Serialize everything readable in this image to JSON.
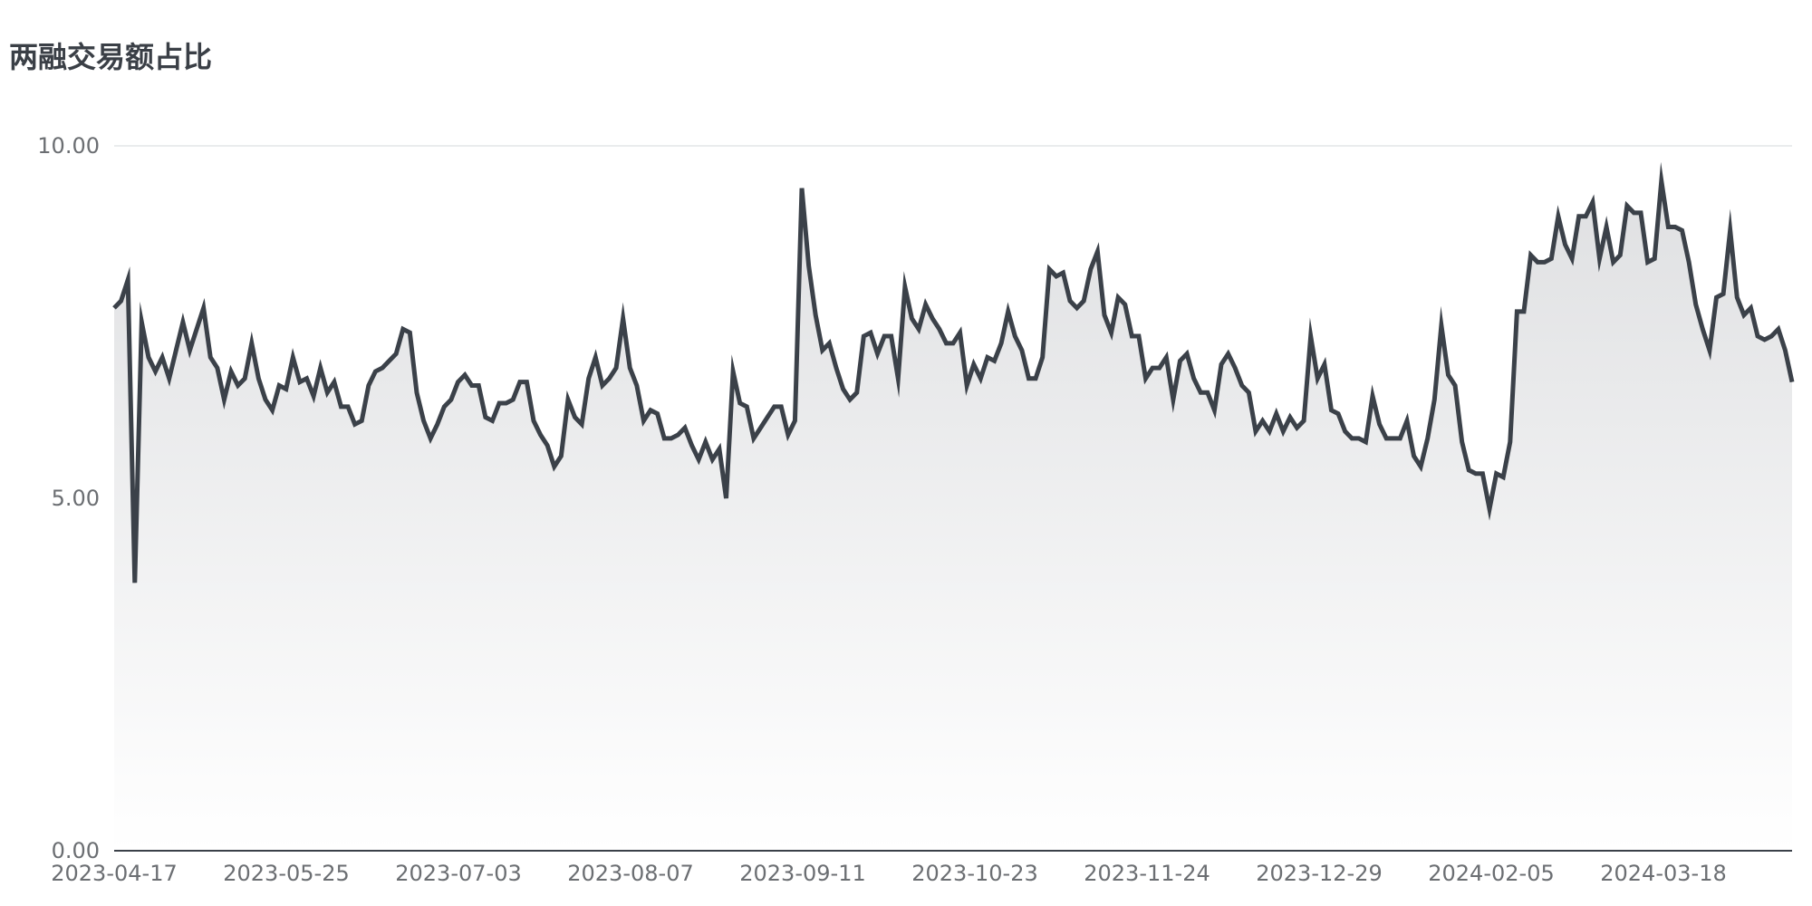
{
  "chart_data": {
    "type": "area",
    "title": "两融交易额占比",
    "xlabel": "",
    "ylabel": "",
    "ylim": [
      0,
      10
    ],
    "yticks": [
      "0.00",
      "5.00",
      "10.00"
    ],
    "xticks": [
      "2023-04-17",
      "2023-05-25",
      "2023-07-03",
      "2023-08-07",
      "2023-09-11",
      "2023-10-23",
      "2023-11-24",
      "2023-12-29",
      "2024-02-05",
      "2024-03-18"
    ],
    "grid": true,
    "legend": "none",
    "colors": {
      "line": "#3b4149",
      "fill_top": "#dfe0e2",
      "fill_bottom": "#ffffff",
      "grid": "#d6d8db",
      "axis": "#3b4149",
      "tick_text": "#6b6e72",
      "title": "#3a3f46"
    },
    "series": [
      {
        "x_start": "2023-04-17",
        "x_end": "2024-04-25",
        "values": [
          7.7,
          7.8,
          8.1,
          3.8,
          7.5,
          7.0,
          6.8,
          7.0,
          6.7,
          7.1,
          7.5,
          7.1,
          7.4,
          7.7,
          7.0,
          6.85,
          6.4,
          6.8,
          6.6,
          6.7,
          7.2,
          6.7,
          6.4,
          6.25,
          6.6,
          6.55,
          7.0,
          6.65,
          6.7,
          6.45,
          6.85,
          6.5,
          6.65,
          6.3,
          6.3,
          6.05,
          6.1,
          6.6,
          6.8,
          6.85,
          6.95,
          7.05,
          7.4,
          7.35,
          6.5,
          6.1,
          5.85,
          6.05,
          6.3,
          6.4,
          6.65,
          6.75,
          6.6,
          6.6,
          6.15,
          6.1,
          6.35,
          6.35,
          6.4,
          6.65,
          6.65,
          6.1,
          5.9,
          5.75,
          5.45,
          5.6,
          6.4,
          6.15,
          6.05,
          6.7,
          7.0,
          6.6,
          6.7,
          6.85,
          7.55,
          6.85,
          6.6,
          6.1,
          6.25,
          6.2,
          5.85,
          5.85,
          5.9,
          6.0,
          5.75,
          5.55,
          5.8,
          5.55,
          5.7,
          5.0,
          6.8,
          6.35,
          6.3,
          5.85,
          6.0,
          6.15,
          6.3,
          6.3,
          5.9,
          6.1,
          9.4,
          8.3,
          7.6,
          7.1,
          7.2,
          6.85,
          6.55,
          6.4,
          6.5,
          7.3,
          7.35,
          7.05,
          7.3,
          7.3,
          6.7,
          8.0,
          7.55,
          7.4,
          7.75,
          7.55,
          7.4,
          7.2,
          7.2,
          7.35,
          6.6,
          6.9,
          6.7,
          7.0,
          6.95,
          7.2,
          7.65,
          7.3,
          7.1,
          6.7,
          6.7,
          7.0,
          8.25,
          8.15,
          8.2,
          7.8,
          7.7,
          7.8,
          8.25,
          8.5,
          7.6,
          7.35,
          7.85,
          7.75,
          7.3,
          7.3,
          6.7,
          6.85,
          6.85,
          7.0,
          6.4,
          6.95,
          7.05,
          6.7,
          6.5,
          6.5,
          6.25,
          6.9,
          7.05,
          6.85,
          6.6,
          6.5,
          5.95,
          6.1,
          5.95,
          6.2,
          5.95,
          6.15,
          6.0,
          6.1,
          7.3,
          6.7,
          6.9,
          6.25,
          6.2,
          5.95,
          5.85,
          5.85,
          5.8,
          6.45,
          6.05,
          5.85,
          5.85,
          5.85,
          6.1,
          5.6,
          5.45,
          5.85,
          6.4,
          7.45,
          6.75,
          6.6,
          5.8,
          5.4,
          5.35,
          5.35,
          4.85,
          5.35,
          5.3,
          5.8,
          7.65,
          7.65,
          8.45,
          8.35,
          8.35,
          8.4,
          9.0,
          8.6,
          8.4,
          9.0,
          9.0,
          9.2,
          8.4,
          8.85,
          8.35,
          8.45,
          9.15,
          9.05,
          9.05,
          8.35,
          8.4,
          9.5,
          8.85,
          8.85,
          8.8,
          8.35,
          7.75,
          7.4,
          7.1,
          7.85,
          7.9,
          8.8,
          7.85,
          7.6,
          7.7,
          7.3,
          7.25,
          7.3,
          7.4,
          7.1,
          6.65
        ]
      }
    ]
  }
}
